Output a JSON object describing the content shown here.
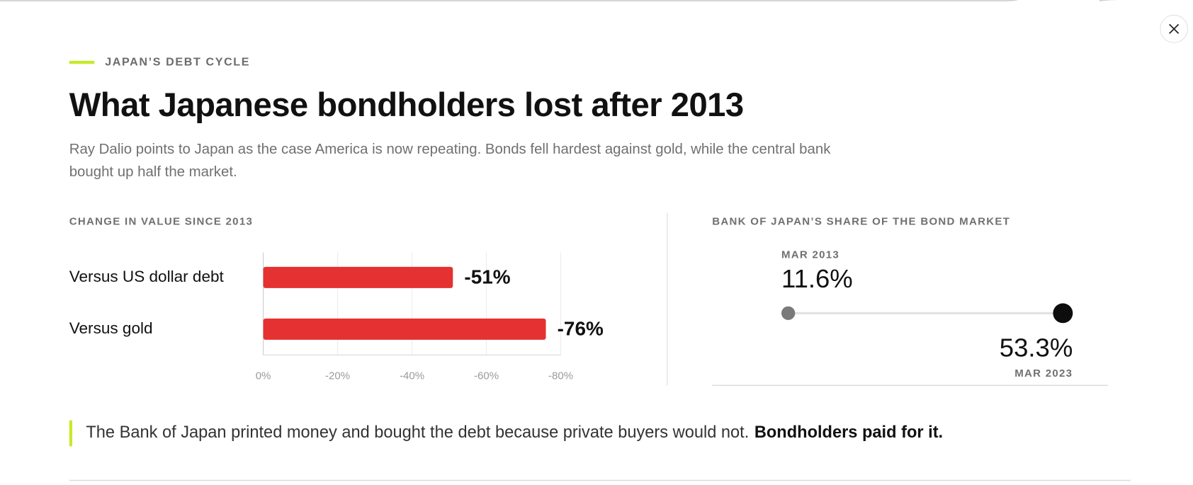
{
  "eyebrow": "JAPAN’S DEBT CYCLE",
  "title": "What Japanese bondholders lost after 2013",
  "subtitle_lines": [
    "Ray Dalio points to Japan as the case America is now repeating. Bonds fell hardest against gold, while the central bank",
    "bought up half the market."
  ],
  "chart_data": {
    "type": "bar",
    "orientation": "horizontal",
    "title": "CHANGE IN VALUE SINCE 2013",
    "categories": [
      "Versus US dollar debt",
      "Versus gold"
    ],
    "values": [
      -51,
      -76
    ],
    "value_labels": [
      "-51%",
      "-76%"
    ],
    "color": "#e53131",
    "xlim": [
      0,
      -80
    ],
    "xticks": [
      {
        "value": 0,
        "label": "0%"
      },
      {
        "value": -20,
        "label": "-20%"
      },
      {
        "value": -40,
        "label": "-40%"
      },
      {
        "value": -60,
        "label": "-60%"
      },
      {
        "value": -80,
        "label": "-80%"
      }
    ],
    "grid": true
  },
  "share": {
    "title": "BANK OF JAPAN’S SHARE OF THE BOND MARKET",
    "start": {
      "date": "MAR 2013",
      "value": 11.6,
      "label": "11.6%"
    },
    "end": {
      "date": "MAR 2023",
      "value": 53.3,
      "label": "53.3%"
    }
  },
  "callout": {
    "text": "The Bank of Japan printed money and bought the debt because private buyers would not.",
    "emphasis": "Bondholders paid for it."
  }
}
